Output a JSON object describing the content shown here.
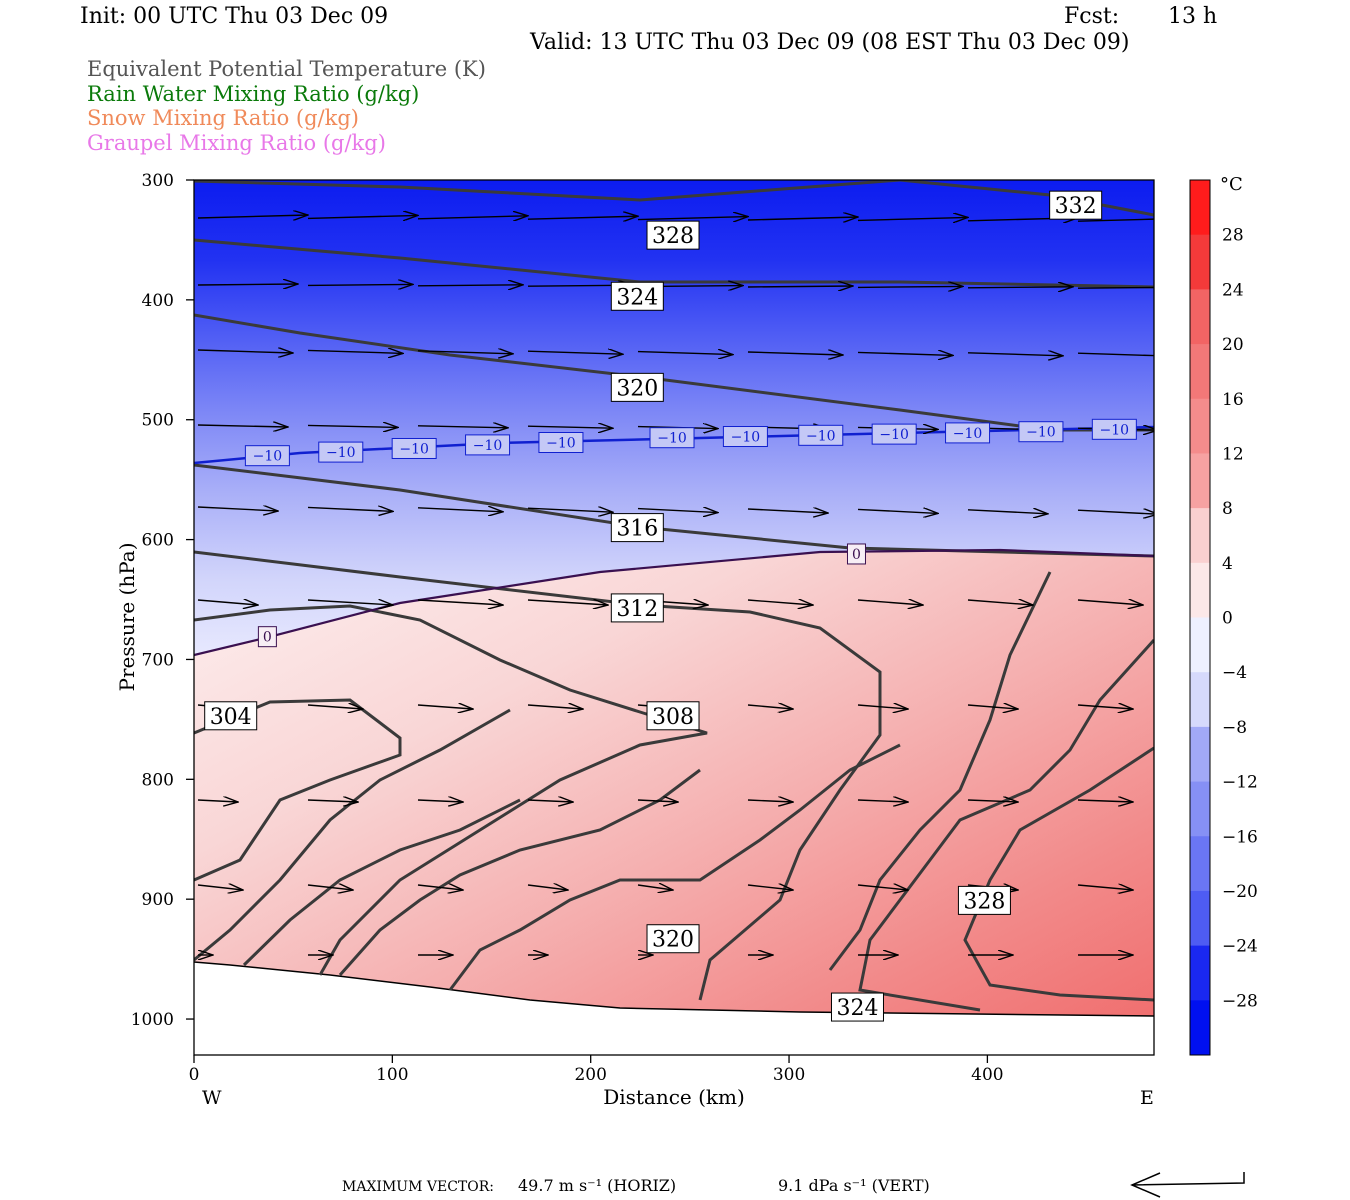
{
  "header": {
    "init": "Init: 00 UTC Thu 03 Dec 09",
    "fcst_label": "Fcst:",
    "fcst_value": "13 h",
    "valid": "Valid: 13 UTC Thu 03 Dec 09 (08 EST Thu 03 Dec 09)"
  },
  "fields": [
    {
      "label": "Equivalent Potential Temperature (K)",
      "color": "#555555"
    },
    {
      "label": "Rain Water Mixing Ratio (g/kg)",
      "color": "#0a7a0a"
    },
    {
      "label": "Snow Mixing Ratio (g/kg)",
      "color": "#f08a5a"
    },
    {
      "label": "Graupel Mixing Ratio (g/kg)",
      "color": "#e878e8"
    }
  ],
  "footer": {
    "max_label": "MAXIMUM VECTOR:",
    "horiz": "49.7 m s⁻¹ (HORIZ)",
    "vert": "9.1 dPa s⁻¹ (VERT)"
  },
  "colorbar": {
    "unit": "°C",
    "ticks": [
      "28",
      "24",
      "20",
      "16",
      "12",
      "8",
      "4",
      "0",
      "−4",
      "−8",
      "−12",
      "−16",
      "−20",
      "−24",
      "−28"
    ]
  },
  "chart_data": {
    "type": "cross-section contour",
    "xlabel": "Distance (km)",
    "ylabel": "Pressure (hPa)",
    "xlim": [
      0,
      484
    ],
    "ylim": [
      1030,
      300
    ],
    "x_ticks": [
      "0",
      "100",
      "200",
      "300",
      "400"
    ],
    "x_tick_values": [
      0,
      100,
      200,
      300,
      400
    ],
    "y_ticks": [
      "300",
      "400",
      "500",
      "600",
      "700",
      "800",
      "900",
      "1000"
    ],
    "y_tick_values": [
      300,
      400,
      500,
      600,
      700,
      800,
      900,
      1000
    ],
    "left_end_label": "W",
    "right_end_label": "E",
    "theta_e_contours_K": [
      {
        "label": "332",
        "x": 444,
        "p": 321
      },
      {
        "label": "328",
        "x": 241,
        "p": 346
      },
      {
        "label": "324",
        "x": 223,
        "p": 397
      },
      {
        "label": "320",
        "x": 223,
        "p": 473
      },
      {
        "label": "316",
        "x": 223,
        "p": 590
      },
      {
        "label": "312",
        "x": 223,
        "p": 657
      },
      {
        "label": "308",
        "x": 241,
        "p": 747
      },
      {
        "label": "304",
        "x": 18,
        "p": 747
      },
      {
        "label": "320",
        "x": 241,
        "p": 933
      },
      {
        "label": "328",
        "x": 398,
        "p": 901
      },
      {
        "label": "324",
        "x": 334,
        "p": 990
      }
    ],
    "temperature_contours_C": [
      {
        "label": "−10",
        "x": 37,
        "p": 530
      },
      {
        "label": "−10",
        "x": 74,
        "p": 527
      },
      {
        "label": "−10",
        "x": 111,
        "p": 524
      },
      {
        "label": "−10",
        "x": 148,
        "p": 521
      },
      {
        "label": "−10",
        "x": 185,
        "p": 519
      },
      {
        "label": "−10",
        "x": 241,
        "p": 515
      },
      {
        "label": "−10",
        "x": 278,
        "p": 514
      },
      {
        "label": "−10",
        "x": 316,
        "p": 513
      },
      {
        "label": "−10",
        "x": 353,
        "p": 512
      },
      {
        "label": "−10",
        "x": 390,
        "p": 511
      },
      {
        "label": "−10",
        "x": 427,
        "p": 510
      },
      {
        "label": "−10",
        "x": 464,
        "p": 508
      },
      {
        "label": "0",
        "x": 37,
        "p": 681
      },
      {
        "label": "0",
        "x": 334,
        "p": 612
      }
    ],
    "legend_fields": [
      "Equivalent Potential Temperature (K)",
      "Rain Water Mixing Ratio (g/kg)",
      "Snow Mixing Ratio (g/kg)",
      "Graupel Mixing Ratio (g/kg)"
    ],
    "shading": "Temperature (°C)",
    "shading_range": [
      -32,
      32
    ],
    "shading_interval": 4,
    "max_vector_horiz_m_s": 49.7,
    "max_vector_vert_dPa_s": 9.1
  }
}
